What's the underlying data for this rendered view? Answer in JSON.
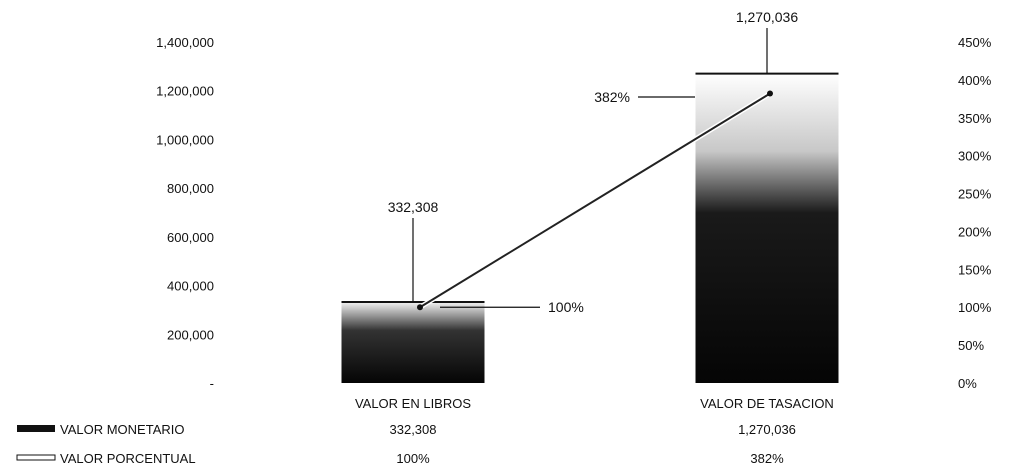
{
  "chart_data": {
    "type": "bar",
    "categories": [
      "VALOR EN LIBROS",
      "VALOR DE TASACION"
    ],
    "series": [
      {
        "name": "VALOR MONETARIO",
        "type": "bar",
        "axis": "left",
        "values": [
          332308,
          1270036
        ],
        "labels": [
          "332,308",
          "1,270,036"
        ]
      },
      {
        "name": "VALOR PORCENTUAL",
        "type": "line",
        "axis": "right",
        "values": [
          100,
          382
        ],
        "labels": [
          "100%",
          "382%"
        ]
      }
    ],
    "left_axis": {
      "ylim": [
        0,
        1400000
      ],
      "ticks": [
        "-",
        "200,000",
        "400,000",
        "600,000",
        "800,000",
        "1,000,000",
        "1,200,000",
        "1,400,000"
      ]
    },
    "right_axis": {
      "ylim": [
        0,
        450
      ],
      "ticks": [
        "0%",
        "50%",
        "100%",
        "150%",
        "200%",
        "250%",
        "300%",
        "350%",
        "400%",
        "450%"
      ]
    },
    "data_table": {
      "rows": [
        {
          "legend": "VALOR MONETARIO",
          "cells": [
            "332,308",
            "1,270,036"
          ]
        },
        {
          "legend": "VALOR PORCENTUAL",
          "cells": [
            "100%",
            "382%"
          ]
        }
      ]
    },
    "grid": false,
    "legend_placement": "bottom-left (data table)",
    "colors": {
      "bar": "#111111",
      "line": "#222222"
    }
  }
}
